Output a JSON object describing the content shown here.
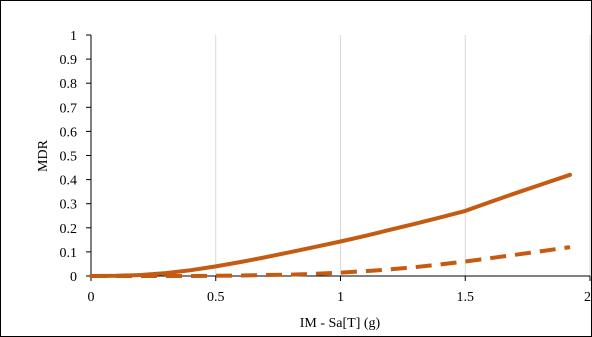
{
  "chart_data": {
    "type": "line",
    "title": "",
    "xlabel": "IM - Sa[T] (g)",
    "ylabel": "MDR",
    "xlim": [
      0,
      2
    ],
    "ylim": [
      0,
      1
    ],
    "xticks": [
      0,
      0.5,
      1,
      1.5,
      2
    ],
    "yticks": [
      0,
      0.1,
      0.2,
      0.3,
      0.4,
      0.5,
      0.6,
      0.7,
      0.8,
      0.9,
      1
    ],
    "xtick_labels": [
      "0",
      "0.5",
      "1",
      "1.5",
      "2"
    ],
    "ytick_labels": [
      "0",
      "0.1",
      "0.2",
      "0.3",
      "0.4",
      "0.5",
      "0.6",
      "0.7",
      "0.8",
      "0.9",
      "1"
    ],
    "grid": "vertical",
    "legend": "none",
    "series": [
      {
        "style": "solid",
        "color": "#c55a11",
        "x": [
          0,
          0.1,
          0.2,
          0.3,
          0.4,
          0.5,
          0.6,
          0.7,
          0.8,
          0.9,
          1.0,
          1.1,
          1.2,
          1.3,
          1.4,
          1.5,
          1.6,
          1.7,
          1.8,
          1.92
        ],
        "y": [
          0,
          0.001,
          0.004,
          0.012,
          0.024,
          0.04,
          0.058,
          0.078,
          0.099,
          0.121,
          0.143,
          0.167,
          0.192,
          0.217,
          0.243,
          0.27,
          0.307,
          0.343,
          0.378,
          0.42
        ]
      },
      {
        "style": "dashed",
        "color": "#c55a11",
        "x": [
          0,
          0.2,
          0.4,
          0.5,
          0.6,
          0.7,
          0.8,
          0.9,
          1.0,
          1.1,
          1.2,
          1.3,
          1.4,
          1.5,
          1.6,
          1.7,
          1.8,
          1.92
        ],
        "y": [
          0,
          0,
          0,
          0.001,
          0.002,
          0.004,
          0.006,
          0.009,
          0.014,
          0.02,
          0.028,
          0.037,
          0.048,
          0.06,
          0.074,
          0.088,
          0.102,
          0.12
        ]
      }
    ]
  }
}
